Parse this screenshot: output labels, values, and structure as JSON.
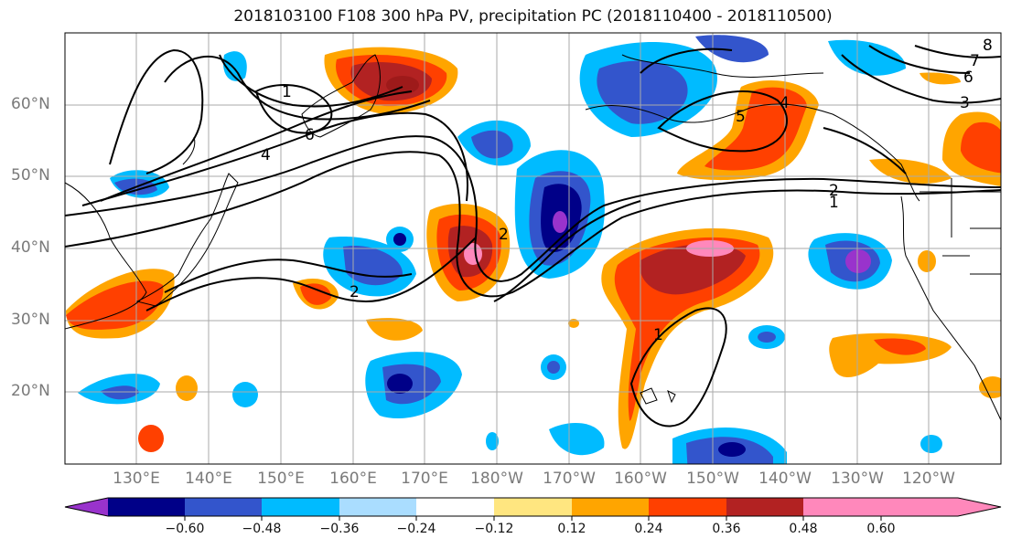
{
  "title": "2018103100 F108 300 hPa PV, precipitation PC (2018110400 - 2018110500)",
  "lat_labels": [
    "60°N",
    "50°N",
    "40°N",
    "30°N",
    "20°N"
  ],
  "lon_labels": [
    "130°E",
    "140°E",
    "150°E",
    "160°E",
    "170°E",
    "180°W",
    "170°W",
    "160°W",
    "150°W",
    "140°W",
    "130°W",
    "120°W"
  ],
  "contour_labels": [
    "1",
    "2",
    "4",
    "6",
    "4",
    "5",
    "3",
    "2",
    "1",
    "1",
    "2",
    "6",
    "7",
    "8"
  ],
  "colorbar": {
    "ticks": [
      "−0.60",
      "−0.48",
      "−0.36",
      "−0.24",
      "−0.12",
      "0.12",
      "0.24",
      "0.36",
      "0.48",
      "0.60"
    ],
    "colors": [
      "#9933cc",
      "#000088",
      "#3355cc",
      "#00bbff",
      "#aaddff",
      "#ffffff",
      "#ffe680",
      "#ffa500",
      "#ff4000",
      "#b22222",
      "#ff88bb"
    ]
  }
}
